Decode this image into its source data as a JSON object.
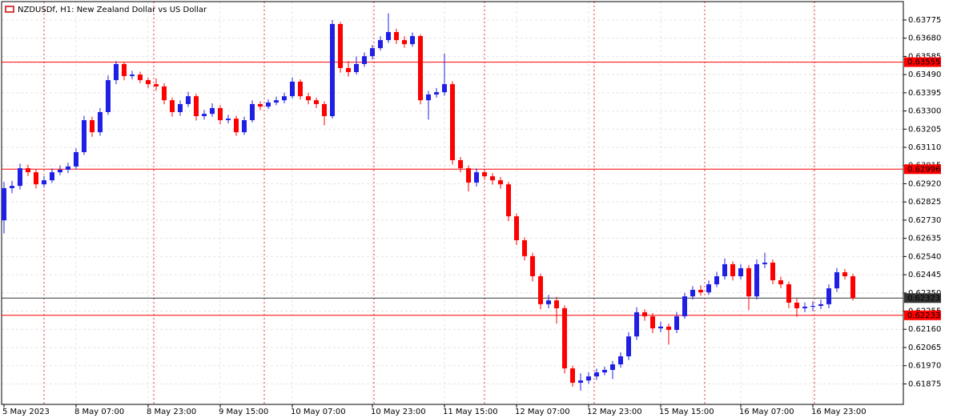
{
  "chart_data": {
    "type": "candlestick",
    "title": "NZDUSDf, H1:  New Zealand Dollar vs US Dollar",
    "categories": [
      "5 May 2023",
      null,
      null,
      null,
      null,
      null,
      null,
      null,
      null,
      "8 May 07:00",
      null,
      null,
      null,
      null,
      null,
      null,
      null,
      null,
      "8 May 23:00",
      null,
      null,
      null,
      null,
      null,
      null,
      null,
      null,
      "9 May 15:00",
      null,
      null,
      null,
      null,
      null,
      null,
      null,
      null,
      "10 May 07:00",
      null,
      null,
      null,
      null,
      null,
      null,
      null,
      null,
      null,
      "10 May 23:00",
      null,
      null,
      null,
      null,
      null,
      null,
      null,
      null,
      "11 May 15:00",
      null,
      null,
      null,
      null,
      null,
      null,
      null,
      null,
      "12 May 07:00",
      null,
      null,
      null,
      null,
      null,
      null,
      null,
      null,
      "12 May 23:00",
      null,
      null,
      null,
      null,
      null,
      null,
      null,
      null,
      "15 May 15:00",
      null,
      null,
      null,
      null,
      null,
      null,
      null,
      null,
      null,
      "16 May 07:00",
      null,
      null,
      null,
      null,
      null,
      null,
      null,
      null,
      "16 May 23:00",
      null,
      null,
      null,
      null,
      null
    ],
    "open": [
      0.62729,
      0.62897,
      0.62909,
      0.63001,
      0.6298,
      0.62917,
      0.62938,
      0.6298,
      0.62993,
      0.6301,
      0.63085,
      0.63252,
      0.63189,
      0.63294,
      0.63461,
      0.63545,
      0.63482,
      0.6349,
      0.63461,
      0.6344,
      0.63428,
      0.63356,
      0.63294,
      0.63336,
      0.63377,
      0.63273,
      0.63285,
      0.63315,
      0.63252,
      0.6326,
      0.63189,
      0.63252,
      0.63336,
      0.63323,
      0.63344,
      0.63356,
      0.63377,
      0.63453,
      0.63377,
      0.63356,
      0.63336,
      0.63273,
      0.63754,
      0.63524,
      0.63503,
      0.63545,
      0.63586,
      0.63628,
      0.6367,
      0.63712,
      0.6367,
      0.63649,
      0.63691,
      0.63356,
      0.63386,
      0.63398,
      0.6344,
      0.63043,
      0.63001,
      0.62926,
      0.6298,
      0.62959,
      0.62938,
      0.62917,
      0.6275,
      0.62625,
      0.62542,
      0.62437,
      0.62291,
      0.62311,
      0.6227,
      0.61956,
      0.61881,
      0.61893,
      0.61914,
      0.61935,
      0.61948,
      0.61977,
      0.62019,
      0.62123,
      0.62249,
      0.62228,
      0.62165,
      0.62174,
      0.62157,
      0.62228,
      0.62332,
      0.62366,
      0.62353,
      0.62395,
      0.62437,
      0.625,
      0.62437,
      0.62479,
      0.62332,
      0.625,
      0.62508,
      0.62416,
      0.62395,
      0.62299,
      0.6227,
      0.62278,
      0.62282,
      0.62291,
      0.62374,
      0.62458,
      0.62437
    ],
    "high": [
      0.6293,
      0.62935,
      0.63025,
      0.6302,
      0.62995,
      0.6296,
      0.63,
      0.63015,
      0.6303,
      0.63105,
      0.63275,
      0.6327,
      0.63315,
      0.63485,
      0.6356,
      0.63555,
      0.6351,
      0.63505,
      0.63475,
      0.6347,
      0.63445,
      0.6337,
      0.63355,
      0.634,
      0.6339,
      0.63305,
      0.6334,
      0.6333,
      0.6328,
      0.63275,
      0.6327,
      0.63355,
      0.6335,
      0.6336,
      0.63375,
      0.63395,
      0.63475,
      0.63465,
      0.63395,
      0.6337,
      0.6335,
      0.63775,
      0.63765,
      0.6356,
      0.63585,
      0.63605,
      0.63645,
      0.6369,
      0.6381,
      0.6373,
      0.6369,
      0.6371,
      0.637,
      0.63405,
      0.6342,
      0.636,
      0.63455,
      0.6306,
      0.63015,
      0.63,
      0.62995,
      0.62975,
      0.62955,
      0.6293,
      0.62765,
      0.6264,
      0.6256,
      0.6245,
      0.6234,
      0.6233,
      0.62285,
      0.6197,
      0.6193,
      0.61935,
      0.61955,
      0.61965,
      0.61995,
      0.6204,
      0.62145,
      0.62275,
      0.62265,
      0.62245,
      0.622,
      0.6219,
      0.6225,
      0.6235,
      0.62385,
      0.6239,
      0.62415,
      0.6246,
      0.6253,
      0.62515,
      0.625,
      0.62495,
      0.62525,
      0.6256,
      0.62525,
      0.62435,
      0.6241,
      0.6232,
      0.623,
      0.62305,
      0.62315,
      0.62395,
      0.6248,
      0.62475,
      0.6245
    ],
    "low": [
      0.6266,
      0.6287,
      0.6289,
      0.6296,
      0.62895,
      0.629,
      0.62925,
      0.62965,
      0.62975,
      0.62995,
      0.6307,
      0.63165,
      0.6317,
      0.6328,
      0.6344,
      0.6346,
      0.63465,
      0.63445,
      0.6342,
      0.63405,
      0.63335,
      0.6327,
      0.63275,
      0.6332,
      0.6325,
      0.63255,
      0.6327,
      0.6323,
      0.63235,
      0.6317,
      0.63175,
      0.6324,
      0.63305,
      0.6331,
      0.6333,
      0.6334,
      0.63365,
      0.6336,
      0.63335,
      0.63315,
      0.63225,
      0.6326,
      0.635,
      0.6348,
      0.6349,
      0.6353,
      0.6357,
      0.63615,
      0.63655,
      0.6365,
      0.6363,
      0.63635,
      0.63335,
      0.63255,
      0.6337,
      0.6338,
      0.6302,
      0.6298,
      0.6288,
      0.62905,
      0.6294,
      0.62915,
      0.62895,
      0.62725,
      0.626,
      0.6252,
      0.6241,
      0.62265,
      0.6227,
      0.6219,
      0.6193,
      0.6186,
      0.6184,
      0.61875,
      0.61895,
      0.6192,
      0.619,
      0.6196,
      0.62,
      0.62105,
      0.62205,
      0.6214,
      0.62145,
      0.6208,
      0.6214,
      0.62215,
      0.62315,
      0.62335,
      0.6234,
      0.6238,
      0.6242,
      0.62415,
      0.6242,
      0.6226,
      0.62315,
      0.6248,
      0.62395,
      0.62375,
      0.6227,
      0.62225,
      0.6225,
      0.62255,
      0.62265,
      0.6227,
      0.62355,
      0.6242,
      0.6231
    ],
    "close": [
      0.62897,
      0.62909,
      0.63001,
      0.6298,
      0.62917,
      0.62938,
      0.6298,
      0.62993,
      0.6301,
      0.63085,
      0.63252,
      0.63189,
      0.63294,
      0.63461,
      0.63545,
      0.63482,
      0.6349,
      0.63461,
      0.6344,
      0.63428,
      0.63356,
      0.63294,
      0.63336,
      0.63377,
      0.63273,
      0.63285,
      0.63315,
      0.63252,
      0.6326,
      0.63189,
      0.63252,
      0.63336,
      0.63323,
      0.63344,
      0.63356,
      0.63377,
      0.63453,
      0.63377,
      0.63356,
      0.63336,
      0.63273,
      0.63754,
      0.63524,
      0.63503,
      0.63545,
      0.63586,
      0.63628,
      0.6367,
      0.63712,
      0.6367,
      0.63649,
      0.63691,
      0.63356,
      0.63386,
      0.63398,
      0.6344,
      0.63043,
      0.63001,
      0.62926,
      0.6298,
      0.62959,
      0.62938,
      0.62917,
      0.6275,
      0.62625,
      0.62542,
      0.62437,
      0.62291,
      0.62311,
      0.6227,
      0.61956,
      0.61881,
      0.61893,
      0.61914,
      0.61935,
      0.61948,
      0.61977,
      0.62019,
      0.62123,
      0.62249,
      0.62228,
      0.62165,
      0.62174,
      0.62157,
      0.62228,
      0.62332,
      0.62366,
      0.62353,
      0.62395,
      0.62437,
      0.625,
      0.62437,
      0.62479,
      0.62332,
      0.625,
      0.62508,
      0.62416,
      0.62395,
      0.62299,
      0.6227,
      0.62278,
      0.62282,
      0.62291,
      0.62374,
      0.62458,
      0.62437,
      0.62323
    ],
    "up_color": "#1f1fe6",
    "down_color": "#ff0000",
    "ylim": [
      0.61768,
      0.63871
    ],
    "yticks": [
      0.63775,
      {
        "value": 0.6368,
        "label": "0.63680"
      },
      0.63585,
      {
        "value": 0.6349,
        "label": "0.63490"
      },
      0.63395,
      {
        "value": 0.633,
        "label": "0.63300"
      },
      0.63205,
      {
        "value": 0.6311,
        "label": "0.63110"
      },
      0.63015,
      {
        "value": 0.6292,
        "label": "0.62920"
      },
      0.62825,
      {
        "value": 0.6273,
        "label": "0.62730"
      },
      0.62635,
      {
        "value": 0.6254,
        "label": "0.62540"
      },
      0.62445,
      {
        "value": 0.6235,
        "label": "0.62350"
      },
      0.62255,
      {
        "value": 0.6216,
        "label": "0.62160"
      },
      0.62065,
      {
        "value": 0.6197,
        "label": "0.61970"
      },
      0.61875
    ],
    "levels": [
      {
        "value": 0.63555,
        "color": "#ff0000"
      },
      {
        "value": 0.62996,
        "color": "#ff0000"
      },
      {
        "value": 0.62233,
        "color": "#ff0000"
      },
      {
        "value": 0.62323,
        "color": "#333333"
      }
    ],
    "grid": true
  }
}
